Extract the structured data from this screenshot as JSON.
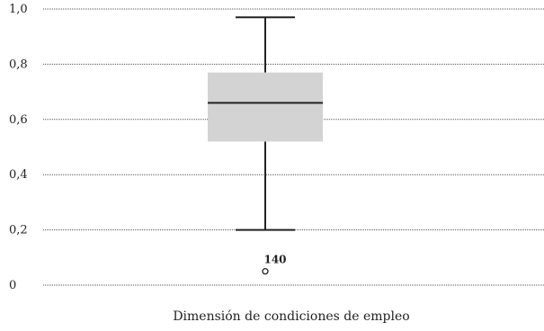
{
  "chart_data": {
    "type": "boxplot",
    "title": "",
    "xlabel": "Dimensión de condiciones de empleo",
    "ylabel": "",
    "ylim": [
      0,
      1.0
    ],
    "yticks": [
      0,
      0.2,
      0.4,
      0.6,
      0.8,
      1.0
    ],
    "ytick_labels": [
      "0",
      "0,2",
      "0,4",
      "0,6",
      "0,8",
      "1,0"
    ],
    "grid": true,
    "box": {
      "whisker_low": 0.2,
      "q1": 0.52,
      "median": 0.66,
      "q3": 0.77,
      "whisker_high": 0.97
    },
    "outliers": [
      {
        "label": "140",
        "value": 0.05
      }
    ],
    "colors": {
      "box_fill": "#d3d3d3",
      "line": "#222222",
      "grid": "#555555"
    }
  }
}
